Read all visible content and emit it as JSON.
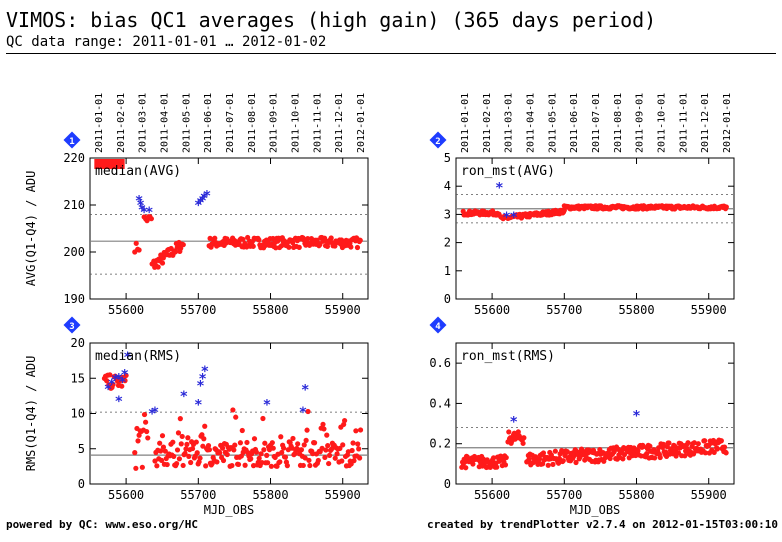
{
  "header": {
    "title": "VIMOS: bias QC1 averages (high gain) (365 days period)",
    "subtitle": "QC data range: 2011-01-01 … 2012-01-02"
  },
  "footer": {
    "left": "powered by QC: www.eso.org/HC",
    "right": "created by trendPlotter v2.7.4 on 2012-01-15T03:00:10"
  },
  "colors": {
    "data": "#ff1a1a",
    "outlier": "#2a2ad8",
    "badge": "#1e3cff",
    "refline": "#808080",
    "frame": "#000000"
  },
  "chart_data": [
    {
      "type": "scatter",
      "badge": "1",
      "label": "median(AVG)",
      "ylabel": "AVG(Q1-Q4) / ADU",
      "xlabel": "",
      "xlim": [
        55550,
        55935
      ],
      "ylim": [
        190,
        220
      ],
      "yticks": [
        190,
        200,
        210,
        220
      ],
      "xticks": [
        55600,
        55700,
        55800,
        55900
      ],
      "reference": 202.3,
      "limits": [
        195.3,
        208.0
      ],
      "top_axis_dates": [
        "2011-01-01",
        "2011-02-01",
        "2011-03-01",
        "2011-04-01",
        "2011-05-01",
        "2011-06-01",
        "2011-07-01",
        "2011-08-01",
        "2011-09-01",
        "2011-10-01",
        "2011-11-01",
        "2011-12-01",
        "2012-01-01"
      ],
      "outliers": [
        [
          55618,
          211
        ],
        [
          55620,
          210
        ],
        [
          55622,
          209
        ],
        [
          55625,
          208.5
        ],
        [
          55632,
          208.5
        ],
        [
          55700,
          210
        ],
        [
          55703,
          210.5
        ],
        [
          55706,
          211
        ],
        [
          55708,
          211.5
        ],
        [
          55712,
          212
        ]
      ],
      "offscale_band": [
        55556,
        55598
      ]
    },
    {
      "type": "scatter",
      "badge": "2",
      "label": "ron_mst(AVG)",
      "ylabel": "",
      "xlabel": "",
      "xlim": [
        55550,
        55935
      ],
      "ylim": [
        0,
        5
      ],
      "yticks": [
        0,
        1,
        2,
        3,
        4,
        5
      ],
      "xticks": [
        55600,
        55700,
        55800,
        55900
      ],
      "reference": 3.2,
      "limits": [
        2.7,
        3.7
      ],
      "top_axis_dates": [
        "2011-01-01",
        "2011-02-01",
        "2011-03-01",
        "2011-04-01",
        "2011-05-01",
        "2011-06-01",
        "2011-07-01",
        "2011-08-01",
        "2011-09-01",
        "2011-10-01",
        "2011-11-01",
        "2011-12-01",
        "2012-01-01"
      ],
      "outliers": [
        [
          55610,
          3.95
        ],
        [
          55620,
          2.9
        ],
        [
          55630,
          2.9
        ]
      ]
    },
    {
      "type": "scatter",
      "badge": "3",
      "label": "median(RMS)",
      "ylabel": "RMS(Q1-Q4) / ADU",
      "xlabel": "MJD_OBS",
      "xlim": [
        55550,
        55935
      ],
      "ylim": [
        0,
        20
      ],
      "yticks": [
        0,
        5,
        10,
        15,
        20
      ],
      "xticks": [
        55600,
        55700,
        55800,
        55900
      ],
      "reference": 4.1,
      "limits": [
        10.2
      ],
      "top_axis_dates": [],
      "outliers": [
        [
          55575,
          13.5
        ],
        [
          55580,
          14.2
        ],
        [
          55585,
          14.8
        ],
        [
          55590,
          15.0
        ],
        [
          55595,
          14.5
        ],
        [
          55598,
          15.5
        ],
        [
          55602,
          18
        ],
        [
          55590,
          11.8
        ],
        [
          55636,
          10
        ],
        [
          55640,
          10.2
        ],
        [
          55680,
          12.5
        ],
        [
          55700,
          11.3
        ],
        [
          55703,
          14
        ],
        [
          55706,
          15
        ],
        [
          55709,
          16
        ],
        [
          55795,
          11.3
        ],
        [
          55845,
          10.2
        ],
        [
          55848,
          13.4
        ]
      ]
    },
    {
      "type": "scatter",
      "badge": "4",
      "label": "ron_mst(RMS)",
      "ylabel": "",
      "xlabel": "MJD_OBS",
      "xlim": [
        55550,
        55935
      ],
      "ylim": [
        0,
        0.7
      ],
      "yticks": [
        0,
        0.2,
        0.4,
        0.6
      ],
      "xticks": [
        55600,
        55700,
        55800,
        55900
      ],
      "reference": 0.18,
      "limits": [
        0.28
      ],
      "top_axis_dates": [],
      "outliers": [
        [
          55630,
          0.31
        ],
        [
          55800,
          0.34
        ]
      ]
    }
  ]
}
